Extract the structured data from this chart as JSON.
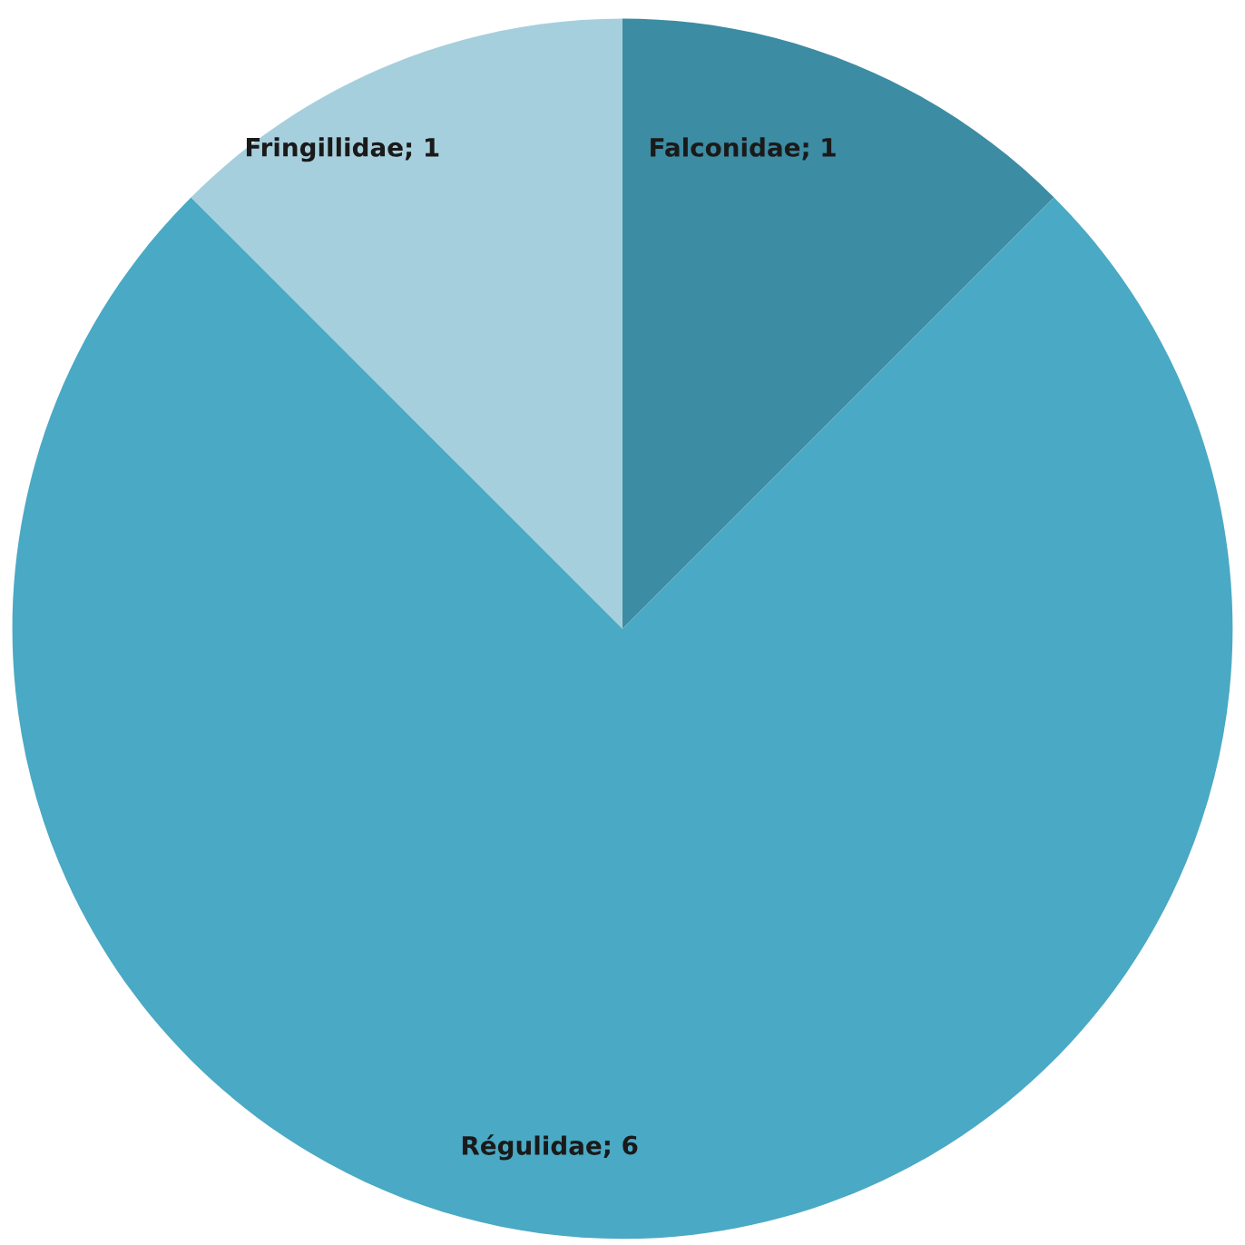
{
  "chart_data": {
    "type": "pie",
    "categories": [
      "Falconidae",
      "Régulidae",
      "Fringillidae"
    ],
    "values": [
      1,
      6,
      1
    ],
    "colors": [
      "#3c8ca3",
      "#4aa9c4",
      "#a6cfdd"
    ],
    "value_labels": [
      "; 1",
      "; 6",
      "; 1"
    ]
  }
}
